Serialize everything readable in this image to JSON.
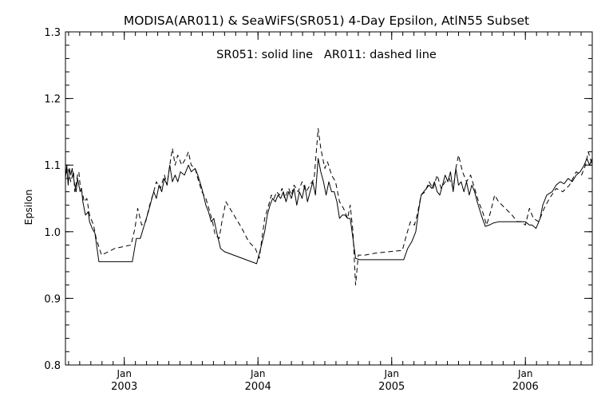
{
  "chart_data": {
    "type": "line",
    "title": "MODISA(AR011) & SeaWiFS(SR051) 4-Day Epsilon, AtlN55 Subset",
    "subtitle": "SR051: solid line   AR011: dashed line",
    "ylabel": "Epsilon",
    "xlabel": "",
    "xlim": [
      2002.56,
      2006.5
    ],
    "ylim": [
      0.8,
      1.3
    ],
    "y_ticks": [
      "0.8",
      "0.9",
      "1.0",
      "1.1",
      "1.2",
      "1.3"
    ],
    "x_ticks": [
      {
        "month": "Jan",
        "year": "2003",
        "value": 2003.0
      },
      {
        "month": "Jan",
        "year": "2004",
        "value": 2004.0
      },
      {
        "month": "Jan",
        "year": "2005",
        "value": 2005.0
      },
      {
        "month": "Jan",
        "year": "2006",
        "value": 2006.0
      }
    ],
    "grid": false,
    "series": [
      {
        "name": "SR051",
        "style": "solid",
        "color": "#000000",
        "points": [
          [
            2002.56,
            1.08
          ],
          [
            2002.57,
            1.1
          ],
          [
            2002.58,
            1.07
          ],
          [
            2002.59,
            1.095
          ],
          [
            2002.6,
            1.085
          ],
          [
            2002.61,
            1.095
          ],
          [
            2002.63,
            1.07
          ],
          [
            2002.64,
            1.06
          ],
          [
            2002.65,
            1.08
          ],
          [
            2002.67,
            1.06
          ],
          [
            2002.68,
            1.065
          ],
          [
            2002.69,
            1.045
          ],
          [
            2002.71,
            1.025
          ],
          [
            2002.73,
            1.03
          ],
          [
            2002.74,
            1.015
          ],
          [
            2002.76,
            1.005
          ],
          [
            2002.78,
            0.998
          ],
          [
            2002.81,
            0.955
          ],
          [
            2002.86,
            0.955
          ],
          [
            2002.91,
            0.955
          ],
          [
            2003.06,
            0.955
          ],
          [
            2003.09,
            0.99
          ],
          [
            2003.12,
            0.99
          ],
          [
            2003.15,
            1.01
          ],
          [
            2003.18,
            1.03
          ],
          [
            2003.2,
            1.045
          ],
          [
            2003.22,
            1.06
          ],
          [
            2003.24,
            1.05
          ],
          [
            2003.26,
            1.07
          ],
          [
            2003.28,
            1.06
          ],
          [
            2003.3,
            1.08
          ],
          [
            2003.32,
            1.07
          ],
          [
            2003.34,
            1.1
          ],
          [
            2003.36,
            1.075
          ],
          [
            2003.38,
            1.085
          ],
          [
            2003.4,
            1.075
          ],
          [
            2003.42,
            1.09
          ],
          [
            2003.45,
            1.085
          ],
          [
            2003.48,
            1.1
          ],
          [
            2003.5,
            1.09
          ],
          [
            2003.53,
            1.095
          ],
          [
            2003.55,
            1.085
          ],
          [
            2003.58,
            1.065
          ],
          [
            2003.61,
            1.04
          ],
          [
            2003.63,
            1.03
          ],
          [
            2003.65,
            1.015
          ],
          [
            2003.67,
            1.02
          ],
          [
            2003.69,
            1.0
          ],
          [
            2003.72,
            0.975
          ],
          [
            2003.75,
            0.97
          ],
          [
            2003.99,
            0.952
          ],
          [
            2004.02,
            0.975
          ],
          [
            2004.05,
            1.0
          ],
          [
            2004.07,
            1.025
          ],
          [
            2004.09,
            1.04
          ],
          [
            2004.11,
            1.05
          ],
          [
            2004.13,
            1.045
          ],
          [
            2004.15,
            1.055
          ],
          [
            2004.17,
            1.05
          ],
          [
            2004.19,
            1.06
          ],
          [
            2004.21,
            1.045
          ],
          [
            2004.23,
            1.06
          ],
          [
            2004.25,
            1.05
          ],
          [
            2004.27,
            1.065
          ],
          [
            2004.29,
            1.04
          ],
          [
            2004.31,
            1.06
          ],
          [
            2004.33,
            1.05
          ],
          [
            2004.35,
            1.07
          ],
          [
            2004.37,
            1.045
          ],
          [
            2004.39,
            1.06
          ],
          [
            2004.41,
            1.075
          ],
          [
            2004.43,
            1.055
          ],
          [
            2004.45,
            1.11
          ],
          [
            2004.47,
            1.09
          ],
          [
            2004.49,
            1.075
          ],
          [
            2004.51,
            1.055
          ],
          [
            2004.53,
            1.075
          ],
          [
            2004.55,
            1.06
          ],
          [
            2004.57,
            1.06
          ],
          [
            2004.59,
            1.045
          ],
          [
            2004.61,
            1.02
          ],
          [
            2004.63,
            1.025
          ],
          [
            2004.65,
            1.025
          ],
          [
            2004.67,
            1.02
          ],
          [
            2004.69,
            1.02
          ],
          [
            2004.71,
            0.99
          ],
          [
            2004.73,
            0.96
          ],
          [
            2004.76,
            0.958
          ],
          [
            2004.79,
            0.958
          ],
          [
            2004.88,
            0.958
          ],
          [
            2005.09,
            0.958
          ],
          [
            2005.12,
            0.975
          ],
          [
            2005.15,
            0.985
          ],
          [
            2005.18,
            1.0
          ],
          [
            2005.2,
            1.03
          ],
          [
            2005.22,
            1.055
          ],
          [
            2005.24,
            1.06
          ],
          [
            2005.26,
            1.065
          ],
          [
            2005.28,
            1.07
          ],
          [
            2005.3,
            1.065
          ],
          [
            2005.32,
            1.075
          ],
          [
            2005.34,
            1.06
          ],
          [
            2005.36,
            1.055
          ],
          [
            2005.38,
            1.07
          ],
          [
            2005.4,
            1.085
          ],
          [
            2005.42,
            1.075
          ],
          [
            2005.44,
            1.09
          ],
          [
            2005.46,
            1.06
          ],
          [
            2005.48,
            1.095
          ],
          [
            2005.5,
            1.07
          ],
          [
            2005.52,
            1.075
          ],
          [
            2005.54,
            1.06
          ],
          [
            2005.56,
            1.075
          ],
          [
            2005.58,
            1.055
          ],
          [
            2005.6,
            1.07
          ],
          [
            2005.62,
            1.06
          ],
          [
            2005.64,
            1.045
          ],
          [
            2005.67,
            1.025
          ],
          [
            2005.7,
            1.008
          ],
          [
            2005.73,
            1.01
          ],
          [
            2005.76,
            1.013
          ],
          [
            2005.8,
            1.015
          ],
          [
            2006.0,
            1.015
          ],
          [
            2006.03,
            1.01
          ],
          [
            2006.05,
            1.01
          ],
          [
            2006.08,
            1.005
          ],
          [
            2006.11,
            1.02
          ],
          [
            2006.13,
            1.04
          ],
          [
            2006.16,
            1.055
          ],
          [
            2006.2,
            1.06
          ],
          [
            2006.23,
            1.07
          ],
          [
            2006.26,
            1.075
          ],
          [
            2006.29,
            1.072
          ],
          [
            2006.32,
            1.08
          ],
          [
            2006.35,
            1.075
          ],
          [
            2006.38,
            1.085
          ],
          [
            2006.41,
            1.09
          ],
          [
            2006.44,
            1.1
          ],
          [
            2006.46,
            1.11
          ],
          [
            2006.48,
            1.1
          ],
          [
            2006.5,
            1.11
          ]
        ]
      },
      {
        "name": "AR011",
        "style": "dashed",
        "color": "#000000",
        "points": [
          [
            2002.56,
            1.085
          ],
          [
            2002.58,
            1.095
          ],
          [
            2002.6,
            1.075
          ],
          [
            2002.62,
            1.09
          ],
          [
            2002.63,
            1.06
          ],
          [
            2002.65,
            1.085
          ],
          [
            2002.66,
            1.09
          ],
          [
            2002.67,
            1.07
          ],
          [
            2002.69,
            1.055
          ],
          [
            2002.7,
            1.045
          ],
          [
            2002.72,
            1.05
          ],
          [
            2002.74,
            1.025
          ],
          [
            2002.77,
            1.01
          ],
          [
            2002.79,
            0.99
          ],
          [
            2002.83,
            0.965
          ],
          [
            2002.88,
            0.97
          ],
          [
            2002.93,
            0.975
          ],
          [
            2003.05,
            0.98
          ],
          [
            2003.08,
            1.005
          ],
          [
            2003.1,
            1.035
          ],
          [
            2003.13,
            1.01
          ],
          [
            2003.16,
            1.015
          ],
          [
            2003.19,
            1.04
          ],
          [
            2003.22,
            1.06
          ],
          [
            2003.24,
            1.075
          ],
          [
            2003.27,
            1.065
          ],
          [
            2003.3,
            1.085
          ],
          [
            2003.32,
            1.07
          ],
          [
            2003.34,
            1.1
          ],
          [
            2003.36,
            1.125
          ],
          [
            2003.38,
            1.1
          ],
          [
            2003.4,
            1.115
          ],
          [
            2003.43,
            1.1
          ],
          [
            2003.46,
            1.11
          ],
          [
            2003.48,
            1.12
          ],
          [
            2003.5,
            1.1
          ],
          [
            2003.53,
            1.095
          ],
          [
            2003.55,
            1.08
          ],
          [
            2003.58,
            1.06
          ],
          [
            2003.61,
            1.05
          ],
          [
            2003.64,
            1.03
          ],
          [
            2003.66,
            1.015
          ],
          [
            2003.68,
            0.995
          ],
          [
            2003.71,
            0.99
          ],
          [
            2003.73,
            1.015
          ],
          [
            2003.76,
            1.045
          ],
          [
            2003.82,
            1.025
          ],
          [
            2003.88,
            1.005
          ],
          [
            2003.93,
            0.985
          ],
          [
            2003.98,
            0.975
          ],
          [
            2004.01,
            0.96
          ],
          [
            2004.03,
            0.99
          ],
          [
            2004.05,
            1.02
          ],
          [
            2004.08,
            1.04
          ],
          [
            2004.1,
            1.055
          ],
          [
            2004.12,
            1.05
          ],
          [
            2004.14,
            1.06
          ],
          [
            2004.16,
            1.055
          ],
          [
            2004.18,
            1.065
          ],
          [
            2004.2,
            1.05
          ],
          [
            2004.23,
            1.065
          ],
          [
            2004.25,
            1.055
          ],
          [
            2004.27,
            1.07
          ],
          [
            2004.3,
            1.06
          ],
          [
            2004.33,
            1.075
          ],
          [
            2004.36,
            1.06
          ],
          [
            2004.39,
            1.07
          ],
          [
            2004.42,
            1.08
          ],
          [
            2004.45,
            1.155
          ],
          [
            2004.47,
            1.125
          ],
          [
            2004.5,
            1.095
          ],
          [
            2004.52,
            1.105
          ],
          [
            2004.55,
            1.085
          ],
          [
            2004.58,
            1.075
          ],
          [
            2004.61,
            1.045
          ],
          [
            2004.64,
            1.035
          ],
          [
            2004.67,
            1.02
          ],
          [
            2004.69,
            1.04
          ],
          [
            2004.71,
            1.0
          ],
          [
            2004.73,
            0.92
          ],
          [
            2004.75,
            0.965
          ],
          [
            2004.8,
            0.965
          ],
          [
            2004.88,
            0.968
          ],
          [
            2005.08,
            0.972
          ],
          [
            2005.11,
            0.995
          ],
          [
            2005.14,
            1.015
          ],
          [
            2005.17,
            1.01
          ],
          [
            2005.19,
            1.025
          ],
          [
            2005.22,
            1.055
          ],
          [
            2005.25,
            1.06
          ],
          [
            2005.28,
            1.075
          ],
          [
            2005.31,
            1.065
          ],
          [
            2005.34,
            1.085
          ],
          [
            2005.37,
            1.065
          ],
          [
            2005.4,
            1.075
          ],
          [
            2005.43,
            1.08
          ],
          [
            2005.46,
            1.065
          ],
          [
            2005.48,
            1.095
          ],
          [
            2005.5,
            1.115
          ],
          [
            2005.53,
            1.09
          ],
          [
            2005.56,
            1.075
          ],
          [
            2005.59,
            1.085
          ],
          [
            2005.62,
            1.065
          ],
          [
            2005.65,
            1.045
          ],
          [
            2005.68,
            1.03
          ],
          [
            2005.71,
            1.01
          ],
          [
            2005.74,
            1.03
          ],
          [
            2005.77,
            1.055
          ],
          [
            2005.8,
            1.045
          ],
          [
            2005.85,
            1.035
          ],
          [
            2005.9,
            1.025
          ],
          [
            2005.94,
            1.015
          ],
          [
            2005.97,
            1.015
          ],
          [
            2006.0,
            1.01
          ],
          [
            2006.03,
            1.035
          ],
          [
            2006.06,
            1.02
          ],
          [
            2006.1,
            1.015
          ],
          [
            2006.14,
            1.035
          ],
          [
            2006.18,
            1.05
          ],
          [
            2006.23,
            1.065
          ],
          [
            2006.28,
            1.06
          ],
          [
            2006.33,
            1.07
          ],
          [
            2006.38,
            1.09
          ],
          [
            2006.42,
            1.085
          ],
          [
            2006.45,
            1.1
          ],
          [
            2006.47,
            1.12
          ],
          [
            2006.5,
            1.1
          ]
        ]
      }
    ]
  }
}
